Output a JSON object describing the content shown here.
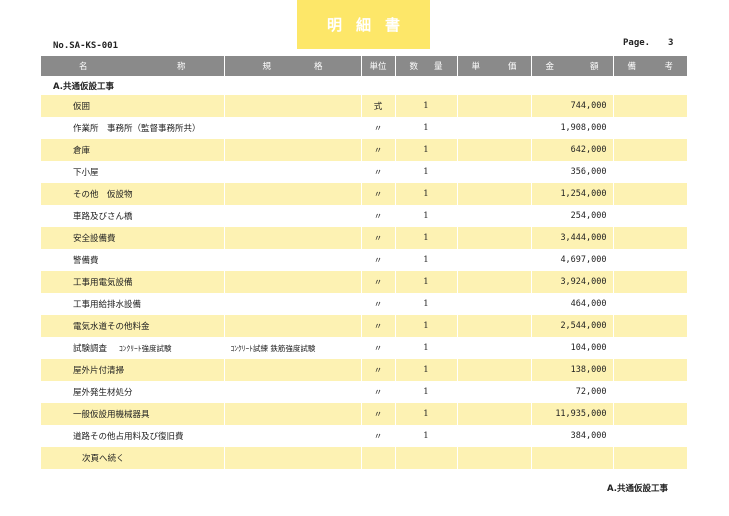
{
  "header": {
    "title": "明細書",
    "doc_no": "No.SA-KS-001",
    "page_label": "Page.",
    "page_number": "3"
  },
  "columns": {
    "name_a": "名",
    "name_b": "称",
    "spec_a": "規",
    "spec_b": "格",
    "unit": "単位",
    "qty_a": "数",
    "qty_b": "量",
    "price_a": "単",
    "price_b": "価",
    "amount_a": "金",
    "amount_b": "額",
    "note_a": "備",
    "note_b": "考"
  },
  "section_title": "A.共通仮設工事",
  "rows": [
    {
      "name": "仮囲",
      "sub": "",
      "spec": "",
      "unit": "式",
      "qty": "1",
      "price": "",
      "amount": "744,000",
      "note": ""
    },
    {
      "name": "作業所　事務所（監督事務所共）",
      "sub": "",
      "spec": "",
      "unit": "〃",
      "qty": "1",
      "price": "",
      "amount": "1,908,000",
      "note": ""
    },
    {
      "name": "倉庫",
      "sub": "",
      "spec": "",
      "unit": "〃",
      "qty": "1",
      "price": "",
      "amount": "642,000",
      "note": ""
    },
    {
      "name": "下小屋",
      "sub": "",
      "spec": "",
      "unit": "〃",
      "qty": "1",
      "price": "",
      "amount": "356,000",
      "note": ""
    },
    {
      "name": "その他　仮設物",
      "sub": "",
      "spec": "",
      "unit": "〃",
      "qty": "1",
      "price": "",
      "amount": "1,254,000",
      "note": ""
    },
    {
      "name": "車路及びさん橋",
      "sub": "",
      "spec": "",
      "unit": "〃",
      "qty": "1",
      "price": "",
      "amount": "254,000",
      "note": ""
    },
    {
      "name": "安全設備費",
      "sub": "",
      "spec": "",
      "unit": "〃",
      "qty": "1",
      "price": "",
      "amount": "3,444,000",
      "note": ""
    },
    {
      "name": "警備費",
      "sub": "",
      "spec": "",
      "unit": "〃",
      "qty": "1",
      "price": "",
      "amount": "4,697,000",
      "note": ""
    },
    {
      "name": "工事用電気設備",
      "sub": "",
      "spec": "",
      "unit": "〃",
      "qty": "1",
      "price": "",
      "amount": "3,924,000",
      "note": ""
    },
    {
      "name": "工事用給排水設備",
      "sub": "",
      "spec": "",
      "unit": "〃",
      "qty": "1",
      "price": "",
      "amount": "464,000",
      "note": ""
    },
    {
      "name": "電気水道その他料金",
      "sub": "",
      "spec": "",
      "unit": "〃",
      "qty": "1",
      "price": "",
      "amount": "2,544,000",
      "note": ""
    },
    {
      "name": "試験調査",
      "sub": "ｺﾝｸﾘｰﾄ強度試験",
      "spec": "ｺﾝｸﾘｰﾄ試練 鉄筋強度試験",
      "unit": "〃",
      "qty": "1",
      "price": "",
      "amount": "104,000",
      "note": ""
    },
    {
      "name": "屋外片付清掃",
      "sub": "",
      "spec": "",
      "unit": "〃",
      "qty": "1",
      "price": "",
      "amount": "138,000",
      "note": ""
    },
    {
      "name": "屋外発生材処分",
      "sub": "",
      "spec": "",
      "unit": "〃",
      "qty": "1",
      "price": "",
      "amount": "72,000",
      "note": ""
    },
    {
      "name": "一般仮設用機械器具",
      "sub": "",
      "spec": "",
      "unit": "〃",
      "qty": "1",
      "price": "",
      "amount": "11,935,000",
      "note": ""
    },
    {
      "name": "道路その他占用料及び復旧費",
      "sub": "",
      "spec": "",
      "unit": "〃",
      "qty": "1",
      "price": "",
      "amount": "384,000",
      "note": ""
    }
  ],
  "continue_row": "次頁へ続く",
  "footer": "A.共通仮設工事",
  "colors": {
    "title_bg": "#fde769",
    "header_bg": "#8a8a8a",
    "stripe": "#fdf2b3"
  }
}
